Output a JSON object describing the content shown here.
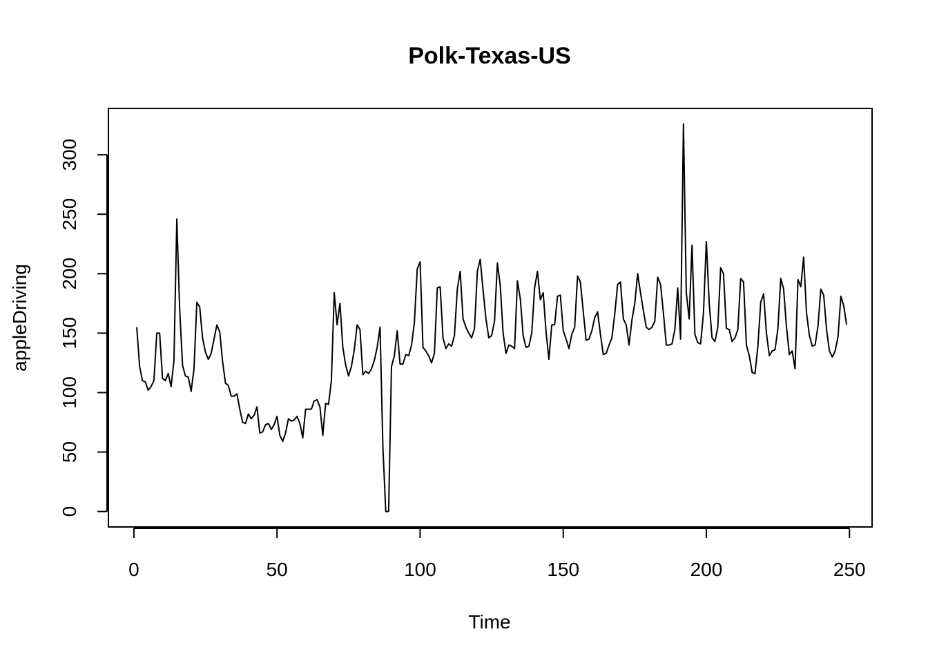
{
  "chart_data": {
    "type": "line",
    "title": "Polk-Texas-US",
    "xlabel": "Time",
    "ylabel": "appleDriving",
    "xlim": [
      -8.9,
      257.9
    ],
    "ylim": [
      -13,
      339
    ],
    "x_ticks": [
      0,
      50,
      100,
      150,
      200,
      250
    ],
    "y_ticks": [
      0,
      50,
      100,
      150,
      200,
      250,
      300
    ],
    "grid": false,
    "legend": "none",
    "line_color": "#000000",
    "series": [
      {
        "x_start": 1,
        "values": [
          155,
          122,
          110,
          109,
          102,
          105,
          110,
          150,
          150,
          112,
          110,
          116,
          105,
          127,
          246,
          170,
          123,
          114,
          113,
          101,
          120,
          176,
          172,
          146,
          134,
          128,
          133,
          145,
          157,
          151,
          126,
          108,
          106,
          97,
          97,
          99,
          86,
          75,
          74,
          82,
          78,
          81,
          88,
          66,
          67,
          73,
          74,
          69,
          73,
          80,
          64,
          59,
          66,
          78,
          76,
          77,
          80,
          74,
          62,
          86,
          86,
          86,
          93,
          94,
          88,
          64,
          91,
          90,
          110,
          184,
          157,
          175,
          138,
          123,
          114,
          122,
          136,
          157,
          153,
          115,
          118,
          116,
          120,
          127,
          138,
          155,
          54,
          0,
          0,
          122,
          131,
          152,
          124,
          124,
          132,
          131,
          140,
          159,
          204,
          210,
          138,
          135,
          131,
          125,
          133,
          188,
          189,
          146,
          137,
          141,
          139,
          148,
          187,
          202,
          162,
          155,
          150,
          146,
          154,
          202,
          212,
          186,
          162,
          146,
          148,
          160,
          209,
          190,
          150,
          133,
          140,
          139,
          137,
          194,
          179,
          148,
          138,
          139,
          150,
          188,
          202,
          178,
          184,
          151,
          128,
          157,
          157,
          181,
          182,
          152,
          145,
          137,
          149,
          155,
          198,
          193,
          168,
          144,
          145,
          152,
          163,
          168,
          149,
          132,
          133,
          140,
          146,
          166,
          191,
          193,
          162,
          157,
          140,
          161,
          175,
          200,
          184,
          169,
          155,
          153,
          155,
          160,
          197,
          191,
          167,
          140,
          140,
          141,
          153,
          188,
          145,
          326,
          184,
          162,
          224,
          149,
          142,
          141,
          167,
          227,
          175,
          146,
          143,
          155,
          205,
          200,
          154,
          153,
          143,
          146,
          153,
          196,
          193,
          140,
          131,
          117,
          116,
          139,
          176,
          183,
          150,
          131,
          135,
          136,
          154,
          196,
          187,
          155,
          132,
          135,
          120,
          195,
          189,
          214,
          167,
          148,
          139,
          140,
          156,
          187,
          182,
          153,
          135,
          130,
          135,
          147,
          181,
          173,
          157
        ]
      }
    ]
  }
}
